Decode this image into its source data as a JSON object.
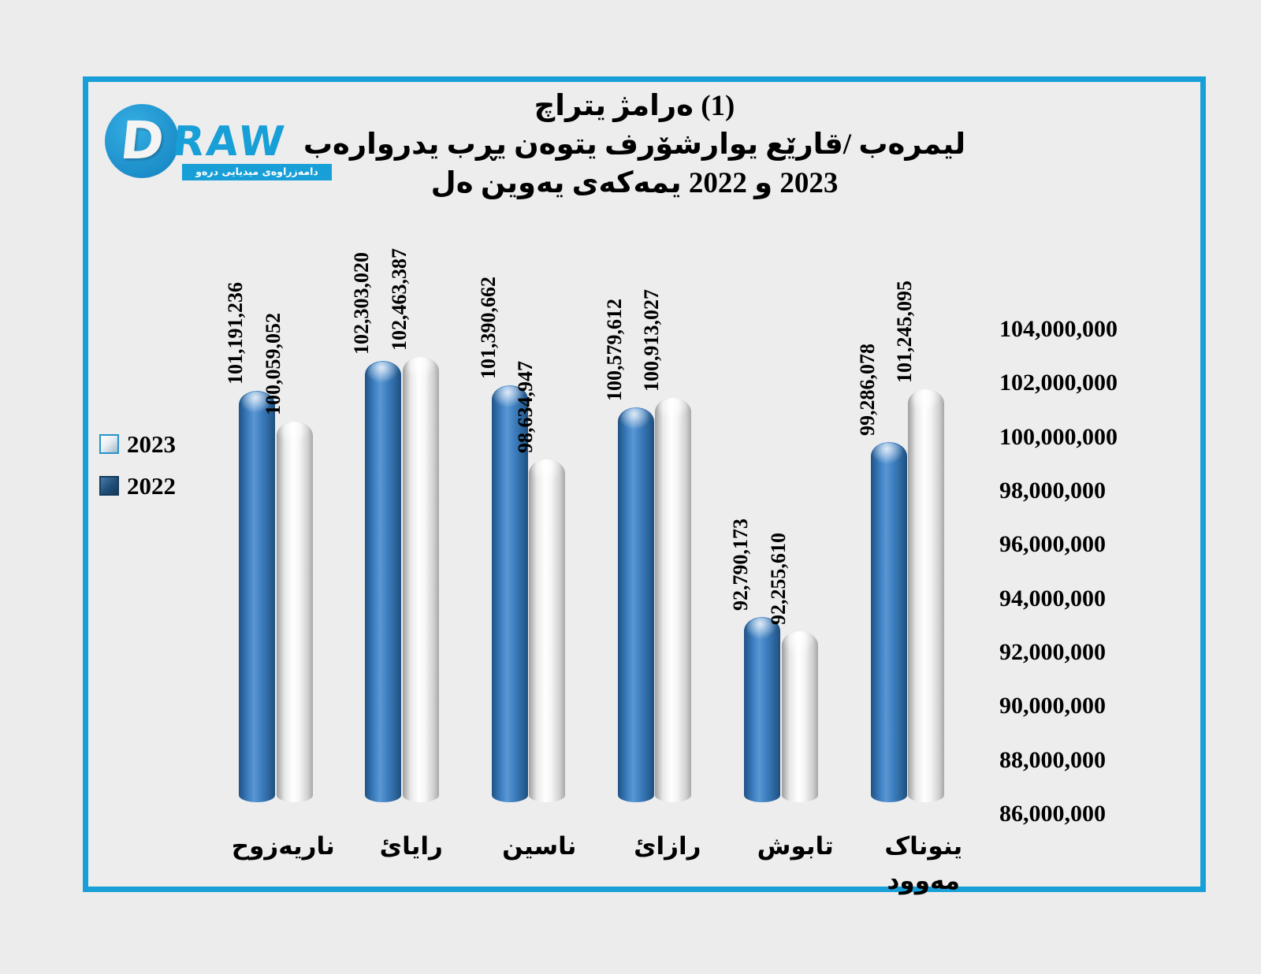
{
  "page": {
    "background": "#ececec",
    "frame_border_color": "#189fd7"
  },
  "logo": {
    "letter_d": "D",
    "letters_raw": "RAW",
    "tagline": "دامەزراوەی میدیایی درەو",
    "color": "#189fd7"
  },
  "title": {
    "line1": "چارتی ژمارە (1)",
    "line2": "بەراوردی بڕی نەوتی فرۆشراوی عێراق/ بەرمیل",
    "line3": "لە نیوەی یەکەمی 2022 و 2023"
  },
  "legend": [
    {
      "label": "2023",
      "swatch": "silver"
    },
    {
      "label": "2022",
      "swatch": "navy"
    }
  ],
  "chart_data": {
    "type": "bar",
    "style": "3d-cylinder",
    "title": "چارتی ژمارە (1) بەراوردی بڕی نەوتی فرۆشراوی عێراق/ بەرمیل لە نیوەی یەکەمی 2022 و 2023",
    "categories": [
      "حوزەیران",
      "ئایار",
      "نیسان",
      "ئازار",
      "شوبات",
      "کانونی دووەم"
    ],
    "series": [
      {
        "name": "2022",
        "color": "#2e74b5",
        "values": [
          101191236,
          102303020,
          101390662,
          100579612,
          92790173,
          99286078
        ],
        "labels": [
          "101,191,236",
          "102,303,020",
          "101,390,662",
          "100,579,612",
          "92,790,173",
          "99,286,078"
        ]
      },
      {
        "name": "2023",
        "color": "#f2f2f2",
        "values": [
          100059052,
          102463387,
          98634947,
          100913027,
          92255610,
          101245095
        ],
        "labels": [
          "100,059,052",
          "102,463,387",
          "98,634,947",
          "100,913,027",
          "92,255,610",
          "101,245,095"
        ]
      }
    ],
    "y_axis": {
      "min": 86000000,
      "max": 104000000,
      "step": 2000000,
      "tick_labels": [
        "104,000,000",
        "102,000,000",
        "100,000,000",
        "98,000,000",
        "96,000,000",
        "94,000,000",
        "92,000,000",
        "90,000,000",
        "88,000,000",
        "86,000,000"
      ],
      "position": "right",
      "grid": true
    },
    "legend_position": "left",
    "plot_colors": {
      "back_wall": "#18a0e0",
      "side_wall": "#1b4a68",
      "floor": "#f6f6f6",
      "gridline": "#8c8c8c",
      "axis": "#4f81bd",
      "x_tick": "#7f7f7f"
    }
  }
}
